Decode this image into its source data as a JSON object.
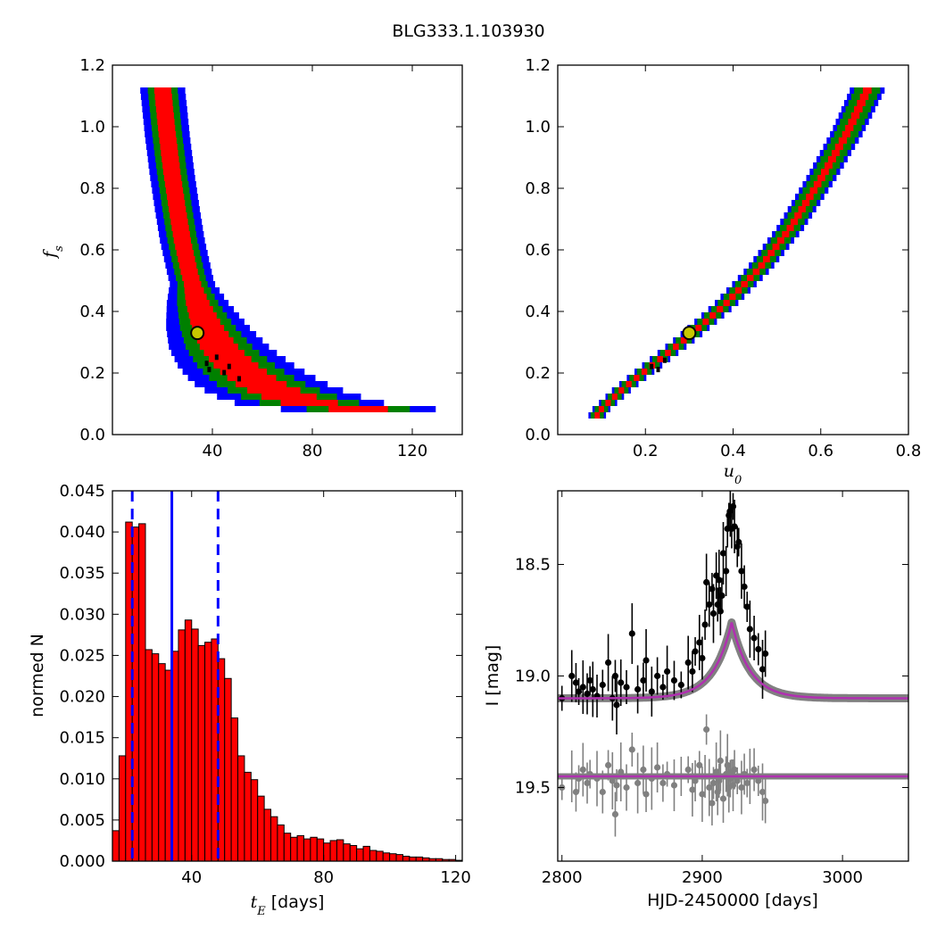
{
  "figure": {
    "title": "BLG333.1.103930"
  },
  "colors": {
    "c1": "#0000ff",
    "c2": "#008000",
    "c3": "#ff0000",
    "best": "#000000",
    "marker": "#c8c800",
    "hist": "#ff0000",
    "model": "#b030b0",
    "band": "#808080",
    "data_top": "#000000",
    "data_bottom": "#808080"
  },
  "chart_data": [
    {
      "type": "heatmap",
      "id": "tE_fs",
      "title": "",
      "xlabel": "",
      "ylabel_main": "f",
      "ylabel_sub": "s",
      "xlim": [
        0,
        140
      ],
      "ylim": [
        0.0,
        1.2
      ],
      "xticks": [
        "40",
        "80",
        "120"
      ],
      "yticks": [
        "0.0",
        "0.2",
        "0.4",
        "0.6",
        "0.8",
        "1.0",
        "1.2"
      ],
      "curve": {
        "x": [
          20,
          22,
          24,
          26,
          28,
          31,
          34,
          38,
          43,
          50,
          58,
          68,
          80,
          95,
          110,
          122
        ],
        "y": [
          1.14,
          0.98,
          0.85,
          0.74,
          0.64,
          0.53,
          0.44,
          0.36,
          0.29,
          0.23,
          0.18,
          0.14,
          0.11,
          0.095,
          0.085,
          0.08
        ]
      },
      "widths": {
        "c1": 6,
        "c2": 4,
        "c3": 2.3
      },
      "best_fit": {
        "x": 34,
        "y": 0.33
      }
    },
    {
      "type": "heatmap",
      "id": "u0_fs",
      "title": "",
      "xlabel_main": "u",
      "xlabel_sub": "0",
      "ylabel": "",
      "xlim": [
        0.0,
        0.8
      ],
      "ylim": [
        0.0,
        1.2
      ],
      "xticks": [
        "0.2",
        "0.4",
        "0.6",
        "0.8"
      ],
      "yticks": [
        "0.0",
        "0.2",
        "0.4",
        "0.6",
        "0.8",
        "1.0",
        "1.2"
      ],
      "curve": {
        "x": [
          0.09,
          0.15,
          0.22,
          0.3,
          0.38,
          0.46,
          0.53,
          0.6,
          0.66,
          0.71
        ],
        "y": [
          0.08,
          0.16,
          0.24,
          0.33,
          0.43,
          0.55,
          0.68,
          0.84,
          0.99,
          1.14
        ]
      },
      "widths": {
        "c1": [
          0.02,
          0.04
        ],
        "c2": [
          0.015,
          0.03
        ],
        "c3": [
          0.006,
          0.01
        ]
      },
      "best_fit": {
        "x": 0.3,
        "y": 0.33
      }
    },
    {
      "type": "bar",
      "id": "tE_hist",
      "title": "",
      "xlabel_main": "t",
      "xlabel_sub": "E",
      "xlabel_rest": " [days]",
      "ylabel": "normed N",
      "xlim": [
        16,
        122
      ],
      "ylim": [
        0.0,
        0.045
      ],
      "xticks": [
        "40",
        "80",
        "120"
      ],
      "yticks": [
        "0.000",
        "0.005",
        "0.010",
        "0.015",
        "0.020",
        "0.025",
        "0.030",
        "0.035",
        "0.040",
        "0.045"
      ],
      "bin_start": 16,
      "bin_width": 2,
      "values": [
        0.0037,
        0.0128,
        0.0412,
        0.0406,
        0.041,
        0.0257,
        0.0252,
        0.024,
        0.0232,
        0.0255,
        0.0281,
        0.0293,
        0.0282,
        0.0262,
        0.0266,
        0.027,
        0.0246,
        0.0222,
        0.0174,
        0.0128,
        0.0108,
        0.0099,
        0.0079,
        0.0063,
        0.0054,
        0.0044,
        0.0034,
        0.0029,
        0.0031,
        0.0027,
        0.0029,
        0.0027,
        0.0022,
        0.0025,
        0.0026,
        0.0021,
        0.0019,
        0.0015,
        0.0018,
        0.0013,
        0.0012,
        0.001,
        0.0009,
        0.0008,
        0.0006,
        0.0005,
        0.0005,
        0.0004,
        0.0003,
        0.0003,
        0.0002,
        0.0002,
        0.0001
      ],
      "median": 34,
      "bounds": [
        22,
        48
      ]
    },
    {
      "type": "line",
      "id": "lightcurve",
      "title": "",
      "xlabel": "HJD-2450000 [days]",
      "ylabel": "I [mag]",
      "xlim": [
        2797,
        3047
      ],
      "ylim": [
        19.83,
        18.17
      ],
      "xticks": [
        "2800",
        "2900",
        "3000"
      ],
      "yticks": [
        "18.5",
        "19.0",
        "19.5"
      ],
      "baseline_mag": 19.1,
      "peak_mag": 18.76,
      "t0": 2921,
      "tE": 34,
      "residual_offset": 19.45,
      "data_top": [
        [
          2800,
          19.1
        ],
        [
          2807,
          19.0
        ],
        [
          2810,
          19.03
        ],
        [
          2812,
          19.07
        ],
        [
          2815,
          19.05
        ],
        [
          2818,
          19.08
        ],
        [
          2820,
          19.02
        ],
        [
          2822,
          19.06
        ],
        [
          2825,
          19.09
        ],
        [
          2829,
          19.04
        ],
        [
          2833,
          18.94
        ],
        [
          2836,
          19.1
        ],
        [
          2838,
          19.0
        ],
        [
          2839,
          19.13
        ],
        [
          2842,
          19.03
        ],
        [
          2846,
          19.05
        ],
        [
          2850,
          18.81
        ],
        [
          2854,
          19.06
        ],
        [
          2858,
          19.02
        ],
        [
          2860,
          18.93
        ],
        [
          2864,
          19.07
        ],
        [
          2868,
          19.0
        ],
        [
          2872,
          19.05
        ],
        [
          2875,
          18.98
        ],
        [
          2880,
          19.02
        ],
        [
          2885,
          19.04
        ],
        [
          2890,
          18.94
        ],
        [
          2893,
          18.98
        ],
        [
          2895,
          18.89
        ],
        [
          2898,
          18.85
        ],
        [
          2900,
          18.92
        ],
        [
          2902,
          18.77
        ],
        [
          2903,
          18.58
        ],
        [
          2905,
          18.68
        ],
        [
          2907,
          18.61
        ],
        [
          2908,
          18.72
        ],
        [
          2910,
          18.55
        ],
        [
          2911,
          18.68
        ],
        [
          2912,
          18.57
        ],
        [
          2913,
          18.71
        ],
        [
          2914,
          18.64
        ],
        [
          2915,
          18.45
        ],
        [
          2917,
          18.53
        ],
        [
          2918,
          18.34
        ],
        [
          2919,
          18.28
        ],
        [
          2920,
          18.26
        ],
        [
          2921,
          18.34
        ],
        [
          2922,
          18.24
        ],
        [
          2923,
          18.33
        ],
        [
          2925,
          18.42
        ],
        [
          2926,
          18.4
        ],
        [
          2928,
          18.53
        ],
        [
          2930,
          18.6
        ],
        [
          2932,
          18.69
        ],
        [
          2934,
          18.79
        ],
        [
          2937,
          18.83
        ],
        [
          2940,
          18.88
        ],
        [
          2943,
          18.97
        ],
        [
          2945,
          18.9
        ]
      ],
      "data_bottom": [
        [
          2800,
          19.5
        ],
        [
          2807,
          19.45
        ],
        [
          2810,
          19.52
        ],
        [
          2812,
          19.46
        ],
        [
          2815,
          19.42
        ],
        [
          2818,
          19.48
        ],
        [
          2820,
          19.44
        ],
        [
          2825,
          19.46
        ],
        [
          2829,
          19.52
        ],
        [
          2833,
          19.4
        ],
        [
          2836,
          19.47
        ],
        [
          2838,
          19.62
        ],
        [
          2839,
          19.49
        ],
        [
          2842,
          19.43
        ],
        [
          2846,
          19.5
        ],
        [
          2850,
          19.33
        ],
        [
          2854,
          19.48
        ],
        [
          2858,
          19.42
        ],
        [
          2860,
          19.53
        ],
        [
          2864,
          19.46
        ],
        [
          2868,
          19.41
        ],
        [
          2872,
          19.48
        ],
        [
          2875,
          19.44
        ],
        [
          2880,
          19.49
        ],
        [
          2885,
          19.45
        ],
        [
          2890,
          19.42
        ],
        [
          2893,
          19.51
        ],
        [
          2895,
          19.47
        ],
        [
          2898,
          19.4
        ],
        [
          2900,
          19.53
        ],
        [
          2902,
          19.45
        ],
        [
          2903,
          19.24
        ],
        [
          2905,
          19.5
        ],
        [
          2907,
          19.57
        ],
        [
          2908,
          19.48
        ],
        [
          2910,
          19.43
        ],
        [
          2911,
          19.52
        ],
        [
          2912,
          19.47
        ],
        [
          2913,
          19.38
        ],
        [
          2915,
          19.55
        ],
        [
          2917,
          19.44
        ],
        [
          2918,
          19.4
        ],
        [
          2919,
          19.5
        ],
        [
          2920,
          19.46
        ],
        [
          2921,
          19.43
        ],
        [
          2922,
          19.49
        ],
        [
          2923,
          19.42
        ],
        [
          2925,
          19.47
        ],
        [
          2928,
          19.5
        ],
        [
          2930,
          19.44
        ],
        [
          2932,
          19.48
        ],
        [
          2934,
          19.45
        ],
        [
          2937,
          19.42
        ],
        [
          2940,
          19.47
        ],
        [
          2943,
          19.52
        ],
        [
          2945,
          19.56
        ]
      ]
    }
  ]
}
